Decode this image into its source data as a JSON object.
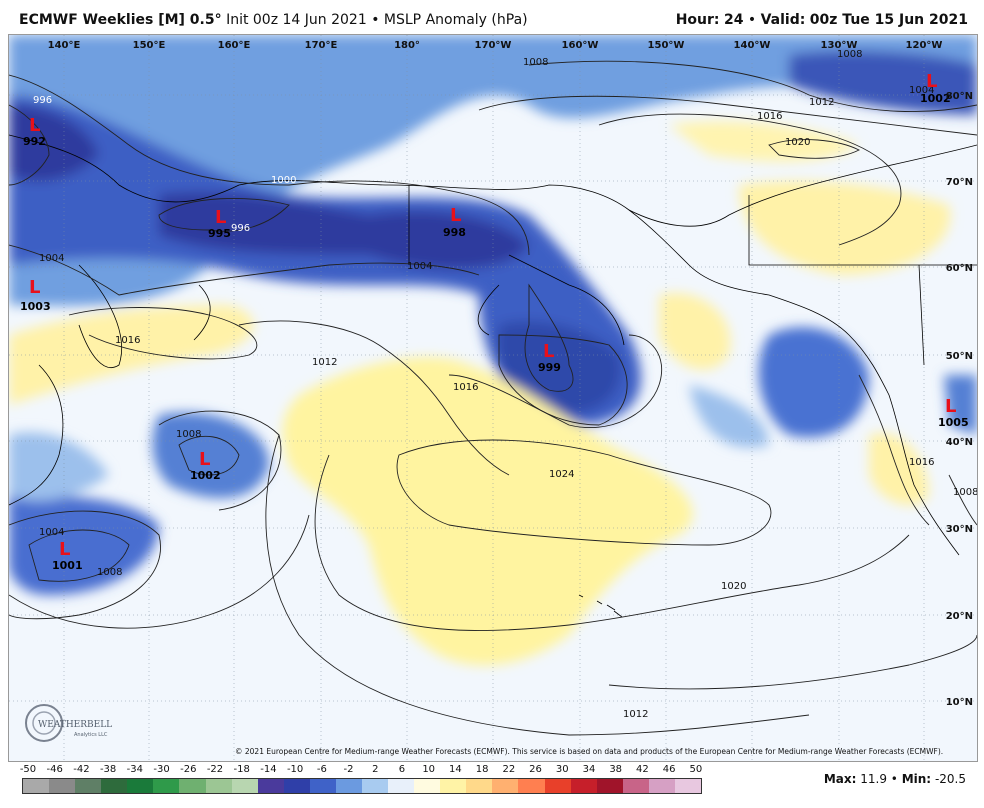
{
  "header": {
    "model": "ECMWF Weeklies [M] 0.5",
    "degree": "°",
    "init": "Init 00z 14 Jun 2021",
    "sep": "•",
    "field": "MSLP Anomaly (hPa)",
    "hour_label": "Hour:",
    "hour": "24",
    "valid_label": "Valid:",
    "valid": "00z Tue 15 Jun 2021"
  },
  "longitudes": [
    "140°E",
    "150°E",
    "160°E",
    "170°E",
    "180°",
    "170°W",
    "160°W",
    "150°W",
    "140°W",
    "130°W",
    "120°W"
  ],
  "latitudes": [
    "80°N",
    "70°N",
    "60°N",
    "50°N",
    "40°N",
    "30°N",
    "20°N",
    "10°N"
  ],
  "lows": [
    {
      "symbol": "L",
      "value": "992"
    },
    {
      "symbol": "L",
      "value": "995"
    },
    {
      "symbol": "L",
      "value": "998"
    },
    {
      "symbol": "L",
      "value": "1003"
    },
    {
      "symbol": "L",
      "value": "999"
    },
    {
      "symbol": "L",
      "value": "1002"
    },
    {
      "symbol": "L",
      "value": "1001"
    },
    {
      "symbol": "L",
      "value": "1002"
    },
    {
      "symbol": "L",
      "value": "1005"
    }
  ],
  "isobars": [
    "996",
    "1000",
    "996",
    "1004",
    "1004",
    "1008",
    "1012",
    "1016",
    "1016",
    "1020",
    "1012",
    "1016",
    "1024",
    "1020",
    "1012",
    "1008",
    "1004",
    "1008",
    "1008",
    "1016",
    "1004",
    "1008"
  ],
  "copyright": "© 2021 European Centre for Medium-range Weather Forecasts (ECMWF). This service is based on data and products of the European Centre for Medium-range Weather Forecasts (ECMWF).",
  "colorbar": {
    "labels": [
      "-50",
      "-46",
      "-42",
      "-38",
      "-34",
      "-30",
      "-26",
      "-22",
      "-18",
      "-14",
      "-10",
      "-6",
      "-2",
      "2",
      "6",
      "10",
      "14",
      "18",
      "22",
      "26",
      "30",
      "34",
      "38",
      "42",
      "46",
      "50"
    ],
    "colors": [
      "#a9a9a9",
      "#8a8a8a",
      "#5f7f66",
      "#2e6b3c",
      "#1a7a3a",
      "#2f9a4a",
      "#6fb070",
      "#9cc694",
      "#b8d6b0",
      "#4a3a9c",
      "#2f3fa8",
      "#3f62c8",
      "#6b9ae0",
      "#a8cbf0",
      "#e8f0fa",
      "#fffbe0",
      "#fff3a6",
      "#ffd98a",
      "#ffb070",
      "#ff7f50",
      "#e8402a",
      "#c61f2a",
      "#a0142a",
      "#c86488",
      "#d6a0c4",
      "#e8c8e0"
    ]
  },
  "stats": {
    "max_label": "Max:",
    "max": "11.9",
    "min_label": "Min:",
    "min": "-20.5"
  },
  "logo": {
    "text": "WEATHERBELL",
    "subtext": "Analytics LLC"
  }
}
